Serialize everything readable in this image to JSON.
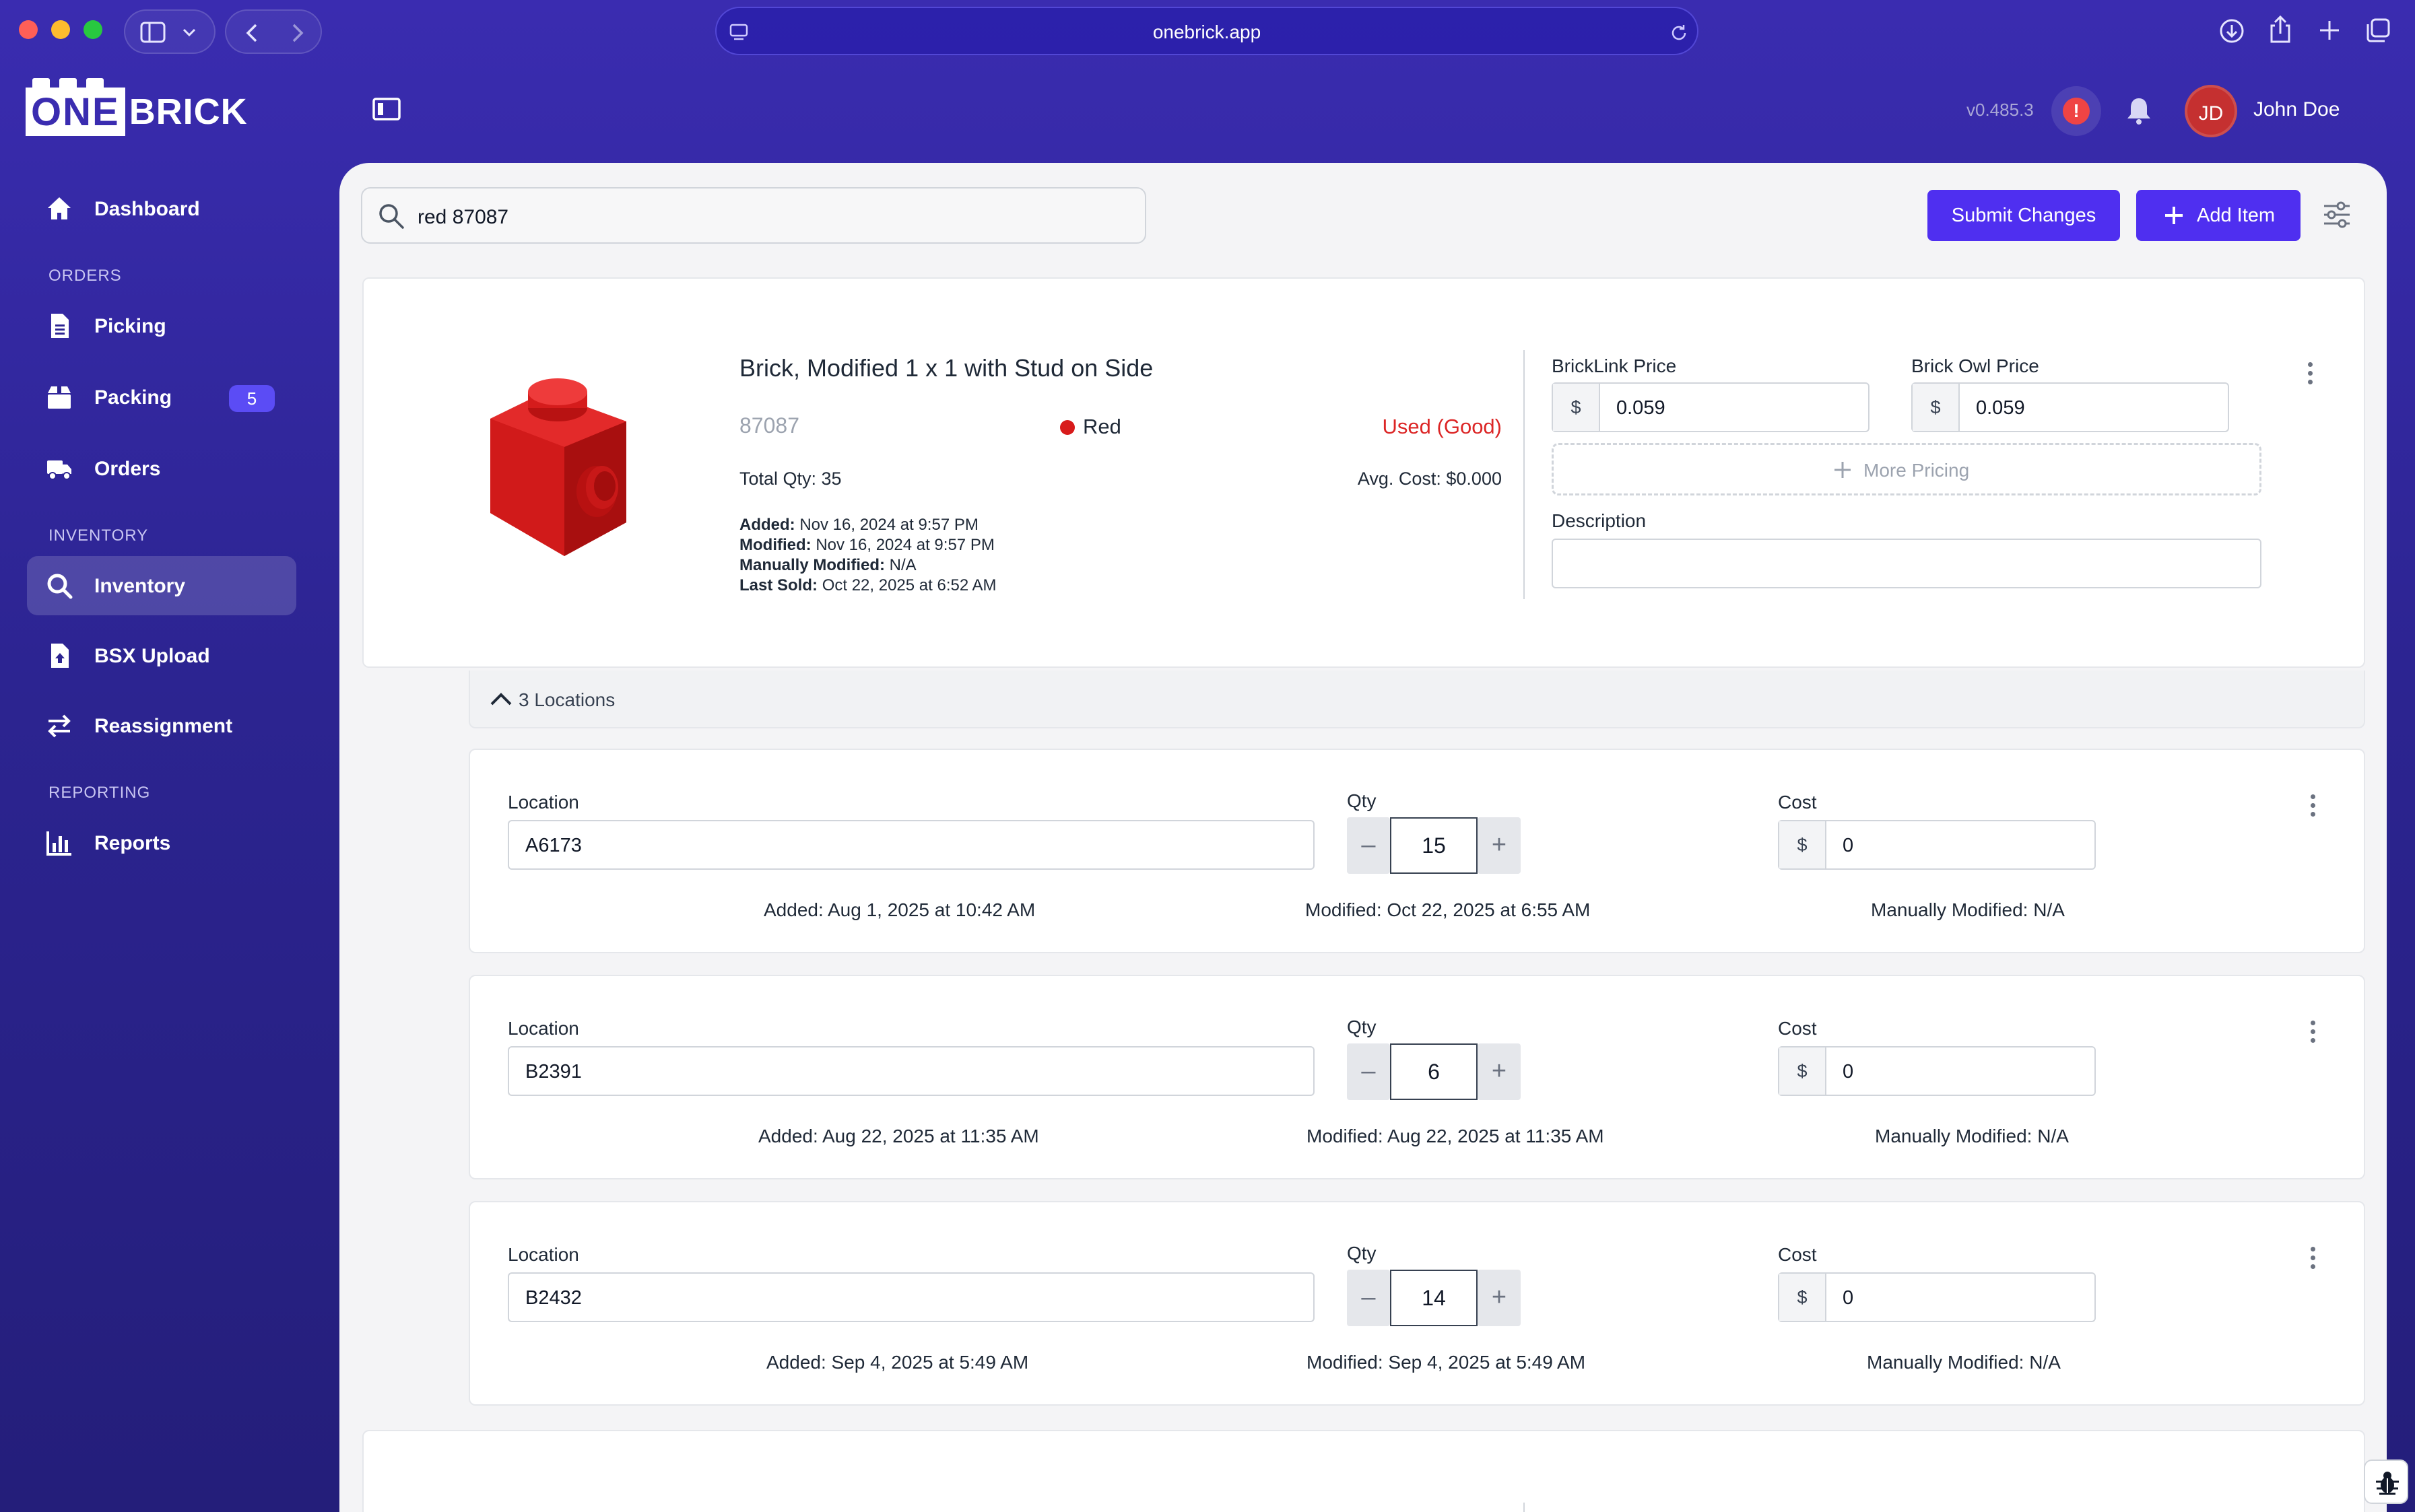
{
  "browser": {
    "url": "onebrick.app"
  },
  "logo": {
    "one": "ONE",
    "brick": "BRICK"
  },
  "header": {
    "version": "v0.485.3",
    "alert_symbol": "!",
    "avatar_initials": "JD",
    "user_name": "John Doe"
  },
  "sidebar": {
    "dashboard": "Dashboard",
    "sections": {
      "orders": "ORDERS",
      "inventory": "INVENTORY",
      "reporting": "REPORTING"
    },
    "picking": "Picking",
    "packing": "Packing",
    "packing_badge": "5",
    "orders": "Orders",
    "inventory": "Inventory",
    "bsx_upload": "BSX Upload",
    "reassignment": "Reassignment",
    "reports": "Reports"
  },
  "toolbar": {
    "search_value": "red 87087",
    "submit_label": "Submit Changes",
    "add_label": "Add Item"
  },
  "item": {
    "name": "Brick, Modified 1 x 1 with Stud on Side",
    "part_number": "87087",
    "color": "Red",
    "condition": "Used (Good)",
    "total_qty": "Total Qty: 35",
    "avg_cost": "Avg. Cost: $0.000",
    "added_label": "Added:",
    "added": "Nov 16, 2024 at 9:57 PM",
    "modified_label": "Modified:",
    "modified": "Nov 16, 2024 at 9:57 PM",
    "manual_label": "Manually Modified:",
    "manual": "N/A",
    "sold_label": "Last Sold:",
    "sold": "Oct 22, 2025 at 6:52 AM",
    "bricklink_label": "BrickLink Price",
    "bricklink_price": "0.059",
    "brickowl_label": "Brick Owl Price",
    "brickowl_price": "0.059",
    "currency": "$",
    "more_pricing": "More Pricing",
    "description_label": "Description",
    "colors": {
      "condition": "#dc2626",
      "color_dot": "#d81b1b"
    }
  },
  "locations_header": "3 Locations",
  "location_labels": {
    "location": "Location",
    "qty": "Qty",
    "cost": "Cost",
    "minus": "–",
    "plus": "+"
  },
  "locations": [
    {
      "code": "A6173",
      "qty": "15",
      "cost": "0",
      "added": "Added: Aug 1, 2025 at 10:42 AM",
      "modified": "Modified: Oct 22, 2025 at 6:55 AM",
      "manual": "Manually Modified: N/A"
    },
    {
      "code": "B2391",
      "qty": "6",
      "cost": "0",
      "added": "Added: Aug 22, 2025 at 11:35 AM",
      "modified": "Modified: Aug 22, 2025 at 11:35 AM",
      "manual": "Manually Modified: N/A"
    },
    {
      "code": "B2432",
      "qty": "14",
      "cost": "0",
      "added": "Added: Sep 4, 2025 at 5:49 AM",
      "modified": "Modified: Sep 4, 2025 at 5:49 AM",
      "manual": "Manually Modified: N/A"
    }
  ]
}
